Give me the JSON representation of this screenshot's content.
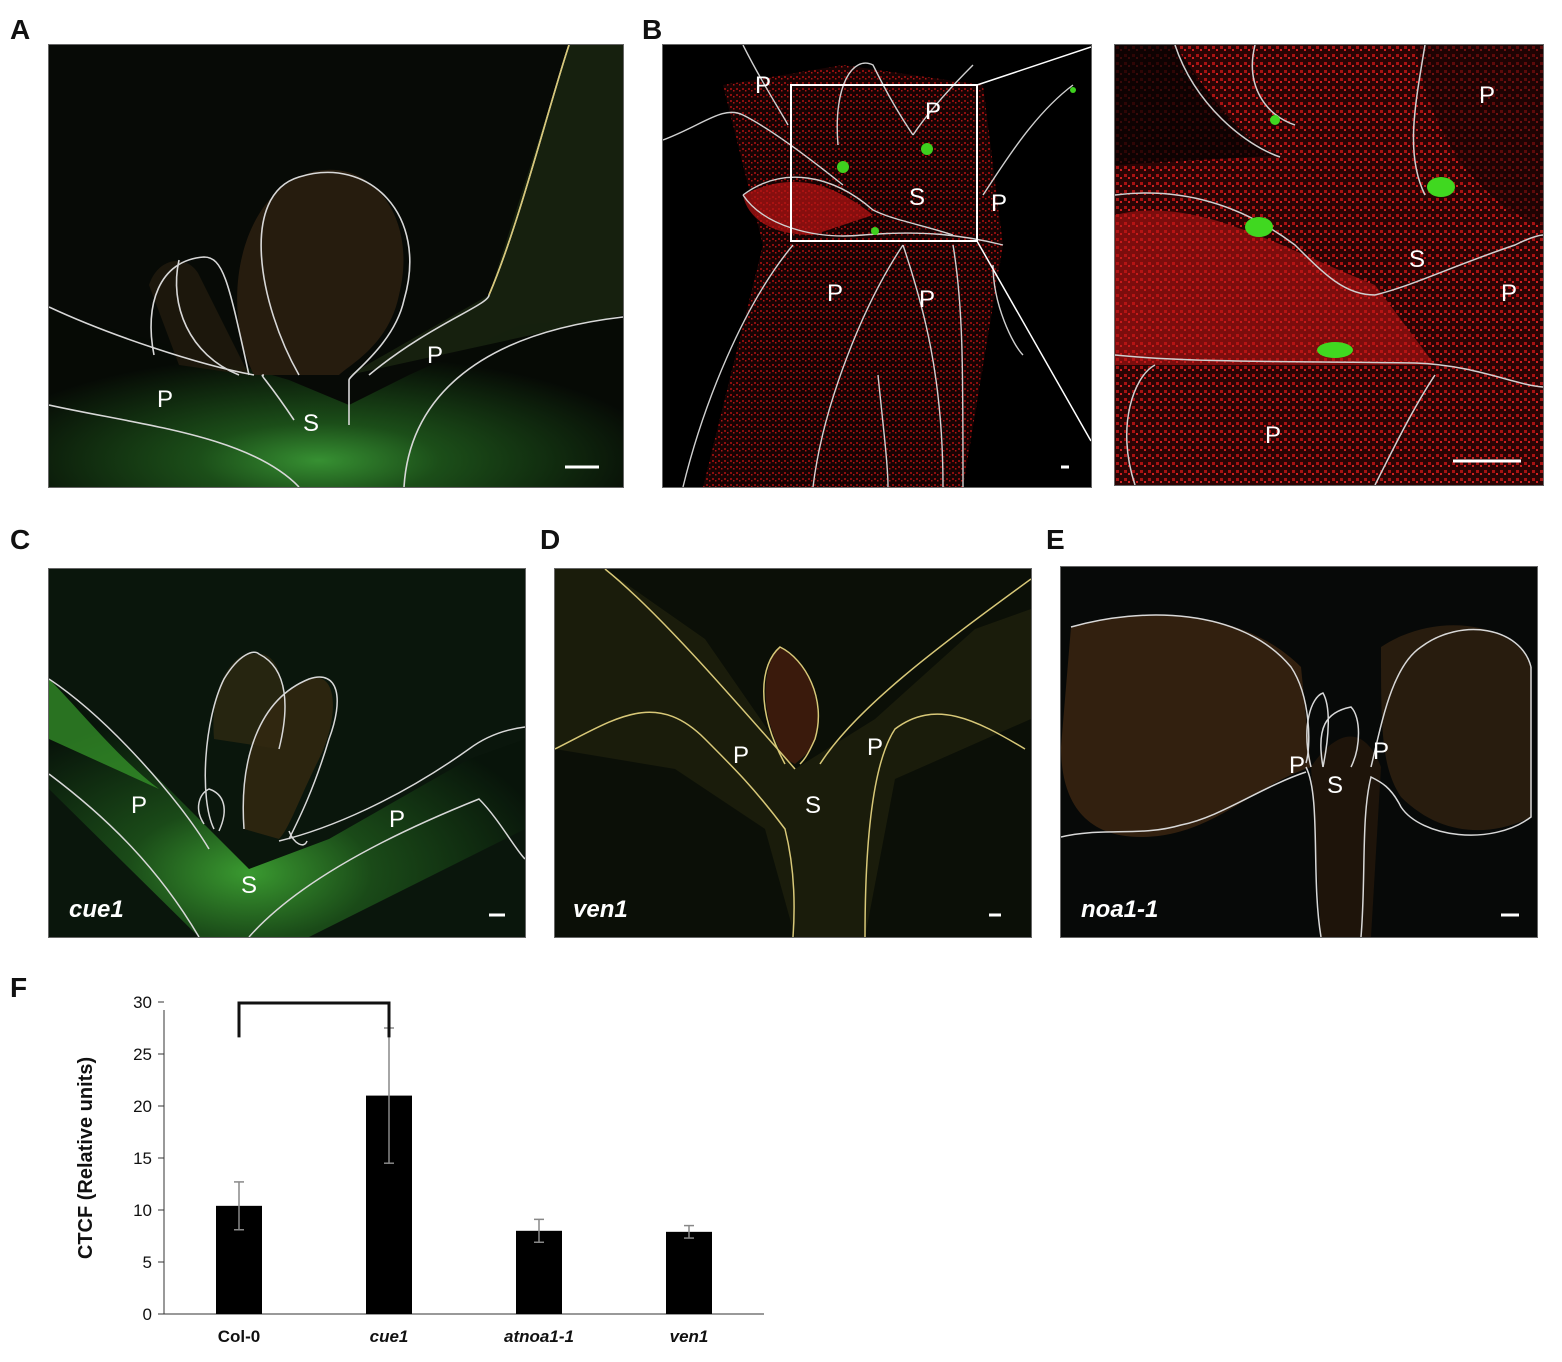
{
  "panels": {
    "A": {
      "letter": "A",
      "labels": {
        "p1": "P",
        "p2": "P",
        "s": "S"
      }
    },
    "B": {
      "letter": "B",
      "labels": {
        "p1": "P",
        "p2": "P",
        "p3": "P",
        "p4": "P",
        "p5": "P",
        "s": "S"
      },
      "inset_labels": {
        "p1": "P",
        "p2": "P",
        "p3": "P",
        "s": "S"
      }
    },
    "C": {
      "letter": "C",
      "genotype": "cue1",
      "labels": {
        "p1": "P",
        "p2": "P",
        "s": "S"
      }
    },
    "D": {
      "letter": "D",
      "genotype": "ven1",
      "labels": {
        "p1": "P",
        "p2": "P",
        "s": "S"
      }
    },
    "E": {
      "letter": "E",
      "genotype": "noa1-1",
      "labels": {
        "p1": "P",
        "p2": "P",
        "s": "S"
      }
    },
    "F": {
      "letter": "F"
    }
  },
  "colors": {
    "bar": "#000000",
    "outline": "#d8d8d8",
    "outline_yellow": "#d8c878",
    "tissue_green": "#2f8a2a",
    "tissue_red": "#b01818"
  },
  "chart_data": {
    "type": "bar",
    "categories": [
      "Col-0",
      "cue1",
      "atnoa1-1",
      "ven1"
    ],
    "values": [
      10.4,
      21.0,
      8.0,
      7.9
    ],
    "errors": [
      2.3,
      6.5,
      1.1,
      0.6
    ],
    "ylabel": "CTCF (Relative units)",
    "ylim": [
      0,
      30
    ],
    "yticks": [
      0,
      5,
      10,
      15,
      20,
      25,
      30
    ],
    "significance": {
      "from": "Col-0",
      "to": "cue1",
      "label": "*"
    },
    "grid": false
  }
}
